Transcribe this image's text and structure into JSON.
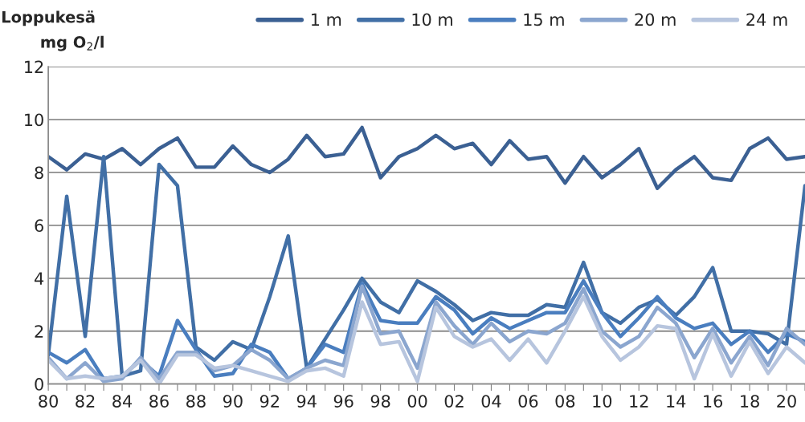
{
  "chart_data": {
    "type": "line",
    "title": "Loppukesä",
    "ylabel": "mg O$_{2}$/l",
    "categories": [
      "80",
      null,
      "82",
      null,
      "84",
      null,
      "86",
      null,
      "88",
      null,
      "90",
      null,
      "92",
      null,
      "94",
      null,
      "96",
      null,
      "98",
      null,
      "00",
      null,
      "02",
      null,
      "04",
      null,
      "06",
      null,
      "08",
      null,
      "10",
      null,
      "12",
      null,
      "14",
      null,
      "16",
      null,
      "18",
      null,
      "20",
      null
    ],
    "series": [
      {
        "name": "1 m",
        "color": "#3b6093",
        "values": [
          8.6,
          8.1,
          8.7,
          8.5,
          8.9,
          8.3,
          8.9,
          9.3,
          8.2,
          8.2,
          9.0,
          8.3,
          8.0,
          8.5,
          9.4,
          8.6,
          8.7,
          9.7,
          7.8,
          8.6,
          8.9,
          9.4,
          8.9,
          9.1,
          8.3,
          9.2,
          8.5,
          8.6,
          7.6,
          8.6,
          7.8,
          8.3,
          8.9,
          7.4,
          8.1,
          8.6,
          7.8,
          7.7,
          8.9,
          9.3,
          8.5,
          8.6
        ]
      },
      {
        "name": "10 m",
        "color": "#416fa6",
        "values": [
          1.1,
          7.1,
          1.8,
          8.6,
          0.3,
          0.5,
          8.3,
          7.5,
          1.4,
          0.9,
          1.6,
          1.3,
          3.3,
          5.6,
          0.6,
          1.7,
          2.8,
          4.0,
          3.1,
          2.7,
          3.9,
          3.5,
          3.0,
          2.4,
          2.7,
          2.6,
          2.6,
          3.0,
          2.9,
          4.6,
          2.7,
          2.3,
          2.9,
          3.2,
          2.6,
          3.3,
          4.4,
          2.0,
          2.0,
          1.9,
          1.5,
          7.5
        ]
      },
      {
        "name": "15 m",
        "color": "#4a7ebf",
        "values": [
          1.2,
          0.8,
          1.3,
          0.2,
          0.3,
          0.9,
          0.3,
          2.4,
          1.3,
          0.3,
          0.4,
          1.5,
          1.2,
          0.2,
          0.6,
          1.5,
          1.2,
          3.8,
          2.4,
          2.3,
          2.3,
          3.3,
          2.8,
          1.9,
          2.5,
          2.1,
          2.4,
          2.7,
          2.7,
          3.9,
          2.7,
          1.8,
          2.5,
          3.3,
          2.5,
          2.1,
          2.3,
          1.5,
          2.0,
          1.2,
          1.9,
          1.6
        ]
      },
      {
        "name": "20 m",
        "color": "#8ba6cf",
        "values": [
          1.0,
          0.2,
          0.8,
          0.1,
          0.2,
          1.0,
          0.2,
          1.2,
          1.2,
          0.5,
          0.7,
          1.3,
          0.9,
          0.2,
          0.6,
          0.9,
          0.7,
          3.7,
          1.9,
          2.0,
          0.6,
          3.1,
          2.2,
          1.5,
          2.3,
          1.6,
          2.0,
          1.9,
          2.3,
          3.6,
          2.0,
          1.4,
          1.8,
          2.9,
          2.3,
          1.0,
          2.1,
          0.8,
          1.8,
          0.7,
          2.1,
          1.5
        ]
      },
      {
        "name": "24 m",
        "color": "#b7c5de",
        "values": [
          0.9,
          0.2,
          0.3,
          0.2,
          0.3,
          0.9,
          0.0,
          1.1,
          1.1,
          0.6,
          0.7,
          0.5,
          0.3,
          0.1,
          0.5,
          0.6,
          0.3,
          3.1,
          1.5,
          1.6,
          0.1,
          2.9,
          1.8,
          1.4,
          1.7,
          0.9,
          1.7,
          0.8,
          2.0,
          3.3,
          1.8,
          0.9,
          1.4,
          2.2,
          2.1,
          0.2,
          1.9,
          0.3,
          1.6,
          0.4,
          1.4,
          0.8
        ]
      }
    ],
    "ylim": [
      0,
      12
    ],
    "yticks": [
      0,
      2,
      4,
      6,
      8,
      10,
      12
    ],
    "grid": "y",
    "legend": "top",
    "marker": "none",
    "line_style": "solid"
  }
}
